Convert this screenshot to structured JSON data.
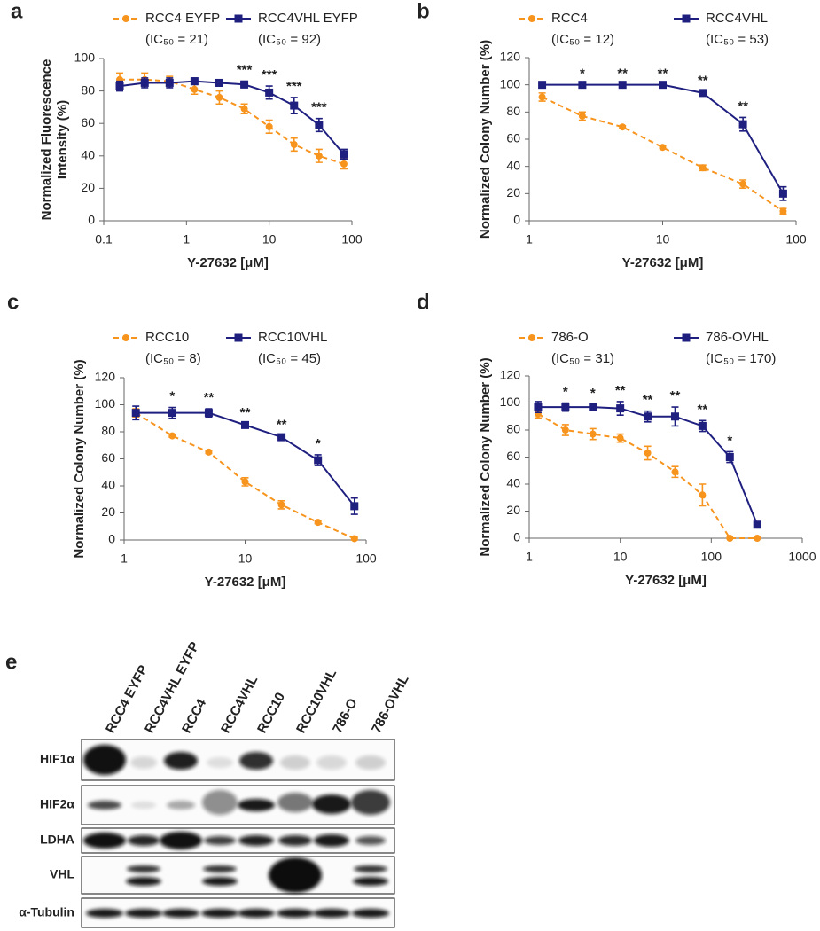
{
  "chart_data": [
    {
      "type": "line",
      "panel_label": "a",
      "xlabel": "Y-27632 [μM]",
      "ylabel": [
        "Normalized Fluorescence",
        "Intensity (%)"
      ],
      "xscale": "log",
      "xlim": [
        0.1,
        100
      ],
      "xticks": [
        0.1,
        1,
        10,
        100
      ],
      "ylim": [
        0,
        100
      ],
      "yticks": [
        0,
        20,
        40,
        60,
        80,
        100
      ],
      "x": [
        0.156,
        0.313,
        0.625,
        1.25,
        2.5,
        5,
        10,
        20,
        40,
        80
      ],
      "series": [
        {
          "name": "RCC4 EYFP",
          "note": "(IC₅₀ = 21)",
          "color": "#f7941d",
          "marker": "circle",
          "dashed": true,
          "values": [
            87,
            87,
            86,
            81,
            76,
            69,
            58,
            47,
            40,
            35
          ],
          "errors": [
            4,
            4,
            3,
            3,
            4,
            3,
            4,
            4,
            4,
            3
          ]
        },
        {
          "name": "RCC4VHL EYFP",
          "note": "(IC₅₀ = 92)",
          "color": "#1f1f80",
          "marker": "square",
          "dashed": false,
          "values": [
            83,
            85,
            85,
            86,
            85,
            84,
            79,
            71,
            59,
            41
          ],
          "errors": [
            3,
            3,
            3,
            2,
            2,
            2,
            4,
            5,
            4,
            3
          ]
        }
      ],
      "annotations": [
        {
          "x": 5,
          "text": "***"
        },
        {
          "x": 10,
          "text": "***"
        },
        {
          "x": 20,
          "text": "***"
        },
        {
          "x": 40,
          "text": "***"
        }
      ]
    },
    {
      "type": "line",
      "panel_label": "b",
      "xlabel": "Y-27632 [μM]",
      "ylabel": "Normalized Colony Number (%)",
      "xscale": "log",
      "xlim": [
        1,
        100
      ],
      "xticks": [
        1,
        10,
        100
      ],
      "ylim": [
        0,
        120
      ],
      "yticks": [
        0,
        20,
        40,
        60,
        80,
        100,
        120
      ],
      "x": [
        1.25,
        2.5,
        5,
        10,
        20,
        40,
        80
      ],
      "series": [
        {
          "name": "RCC4",
          "note": "(IC₅₀ = 12)",
          "color": "#f7941d",
          "marker": "circle",
          "dashed": true,
          "values": [
            91,
            77,
            69,
            54,
            39,
            27,
            7
          ],
          "errors": [
            3,
            3,
            1,
            1,
            2,
            3,
            2
          ]
        },
        {
          "name": "RCC4VHL",
          "note": "(IC₅₀ = 53)",
          "color": "#1f1f80",
          "marker": "square",
          "dashed": false,
          "values": [
            100,
            100,
            100,
            100,
            94,
            71,
            20
          ],
          "errors": [
            0,
            0,
            0,
            0,
            1,
            5,
            5
          ]
        }
      ],
      "annotations": [
        {
          "x": 2.5,
          "text": "*"
        },
        {
          "x": 5,
          "text": "**"
        },
        {
          "x": 10,
          "text": "**"
        },
        {
          "x": 20,
          "text": "**"
        },
        {
          "x": 40,
          "text": "**"
        }
      ]
    },
    {
      "type": "line",
      "panel_label": "c",
      "xlabel": "Y-27632 [μM]",
      "ylabel": "Normalized Colony Number (%)",
      "xscale": "log",
      "xlim": [
        1,
        100
      ],
      "xticks": [
        1,
        10,
        100
      ],
      "ylim": [
        0,
        120
      ],
      "yticks": [
        0,
        20,
        40,
        60,
        80,
        100,
        120
      ],
      "x": [
        1.25,
        2.5,
        5,
        10,
        20,
        40,
        80
      ],
      "series": [
        {
          "name": "RCC10",
          "note": "(IC₅₀ = 8)",
          "color": "#f7941d",
          "marker": "circle",
          "dashed": true,
          "values": [
            94,
            77,
            65,
            43,
            26,
            13,
            1
          ],
          "errors": [
            3,
            1,
            1,
            3,
            3,
            1,
            1
          ]
        },
        {
          "name": "RCC10VHL",
          "note": "(IC₅₀ = 45)",
          "color": "#1f1f80",
          "marker": "square",
          "dashed": false,
          "values": [
            94,
            94,
            94,
            85,
            76,
            59,
            25
          ],
          "errors": [
            5,
            4,
            3,
            1,
            1,
            4,
            6
          ]
        }
      ],
      "annotations": [
        {
          "x": 2.5,
          "text": "*"
        },
        {
          "x": 5,
          "text": "**"
        },
        {
          "x": 10,
          "text": "**"
        },
        {
          "x": 20,
          "text": "**"
        },
        {
          "x": 40,
          "text": "*"
        }
      ]
    },
    {
      "type": "line",
      "panel_label": "d",
      "xlabel": "Y-27632 [μM]",
      "ylabel": "Normalized Colony Number (%)",
      "xscale": "log",
      "xlim": [
        1,
        1000
      ],
      "xticks": [
        1,
        10,
        100,
        1000
      ],
      "ylim": [
        0,
        120
      ],
      "yticks": [
        0,
        20,
        40,
        60,
        80,
        100,
        120
      ],
      "x": [
        1.25,
        2.5,
        5,
        10,
        20,
        40,
        80,
        160,
        320
      ],
      "series": [
        {
          "name": "786-O",
          "note": "(IC₅₀ = 31)",
          "color": "#f7941d",
          "marker": "circle",
          "dashed": true,
          "values": [
            92,
            80,
            77,
            74,
            63,
            49,
            32,
            0,
            0
          ],
          "errors": [
            3,
            4,
            4,
            3,
            5,
            4,
            8,
            0,
            0
          ]
        },
        {
          "name": "786-OVHL",
          "note": "(IC₅₀ = 170)",
          "color": "#1f1f80",
          "marker": "square",
          "dashed": false,
          "values": [
            97,
            97,
            97,
            96,
            90,
            90,
            83,
            60,
            10
          ],
          "errors": [
            4,
            3,
            2,
            5,
            4,
            7,
            4,
            4,
            2
          ]
        }
      ],
      "annotations": [
        {
          "x": 2.5,
          "text": "*"
        },
        {
          "x": 5,
          "text": "*"
        },
        {
          "x": 10,
          "text": "**"
        },
        {
          "x": 20,
          "text": "**"
        },
        {
          "x": 40,
          "text": "**"
        },
        {
          "x": 80,
          "text": "**"
        },
        {
          "x": 160,
          "text": "*"
        }
      ]
    }
  ],
  "blot": {
    "panel_label": "e",
    "lanes": [
      "RCC4 EYFP",
      "RCC4VHL EYFP",
      "RCC4",
      "RCC4VHL",
      "RCC10",
      "RCC10VHL",
      "786-O",
      "786-OVHL"
    ],
    "proteins": [
      "HIF1α",
      "HIF2α",
      "LDHA",
      "VHL",
      "α-Tubulin"
    ]
  }
}
